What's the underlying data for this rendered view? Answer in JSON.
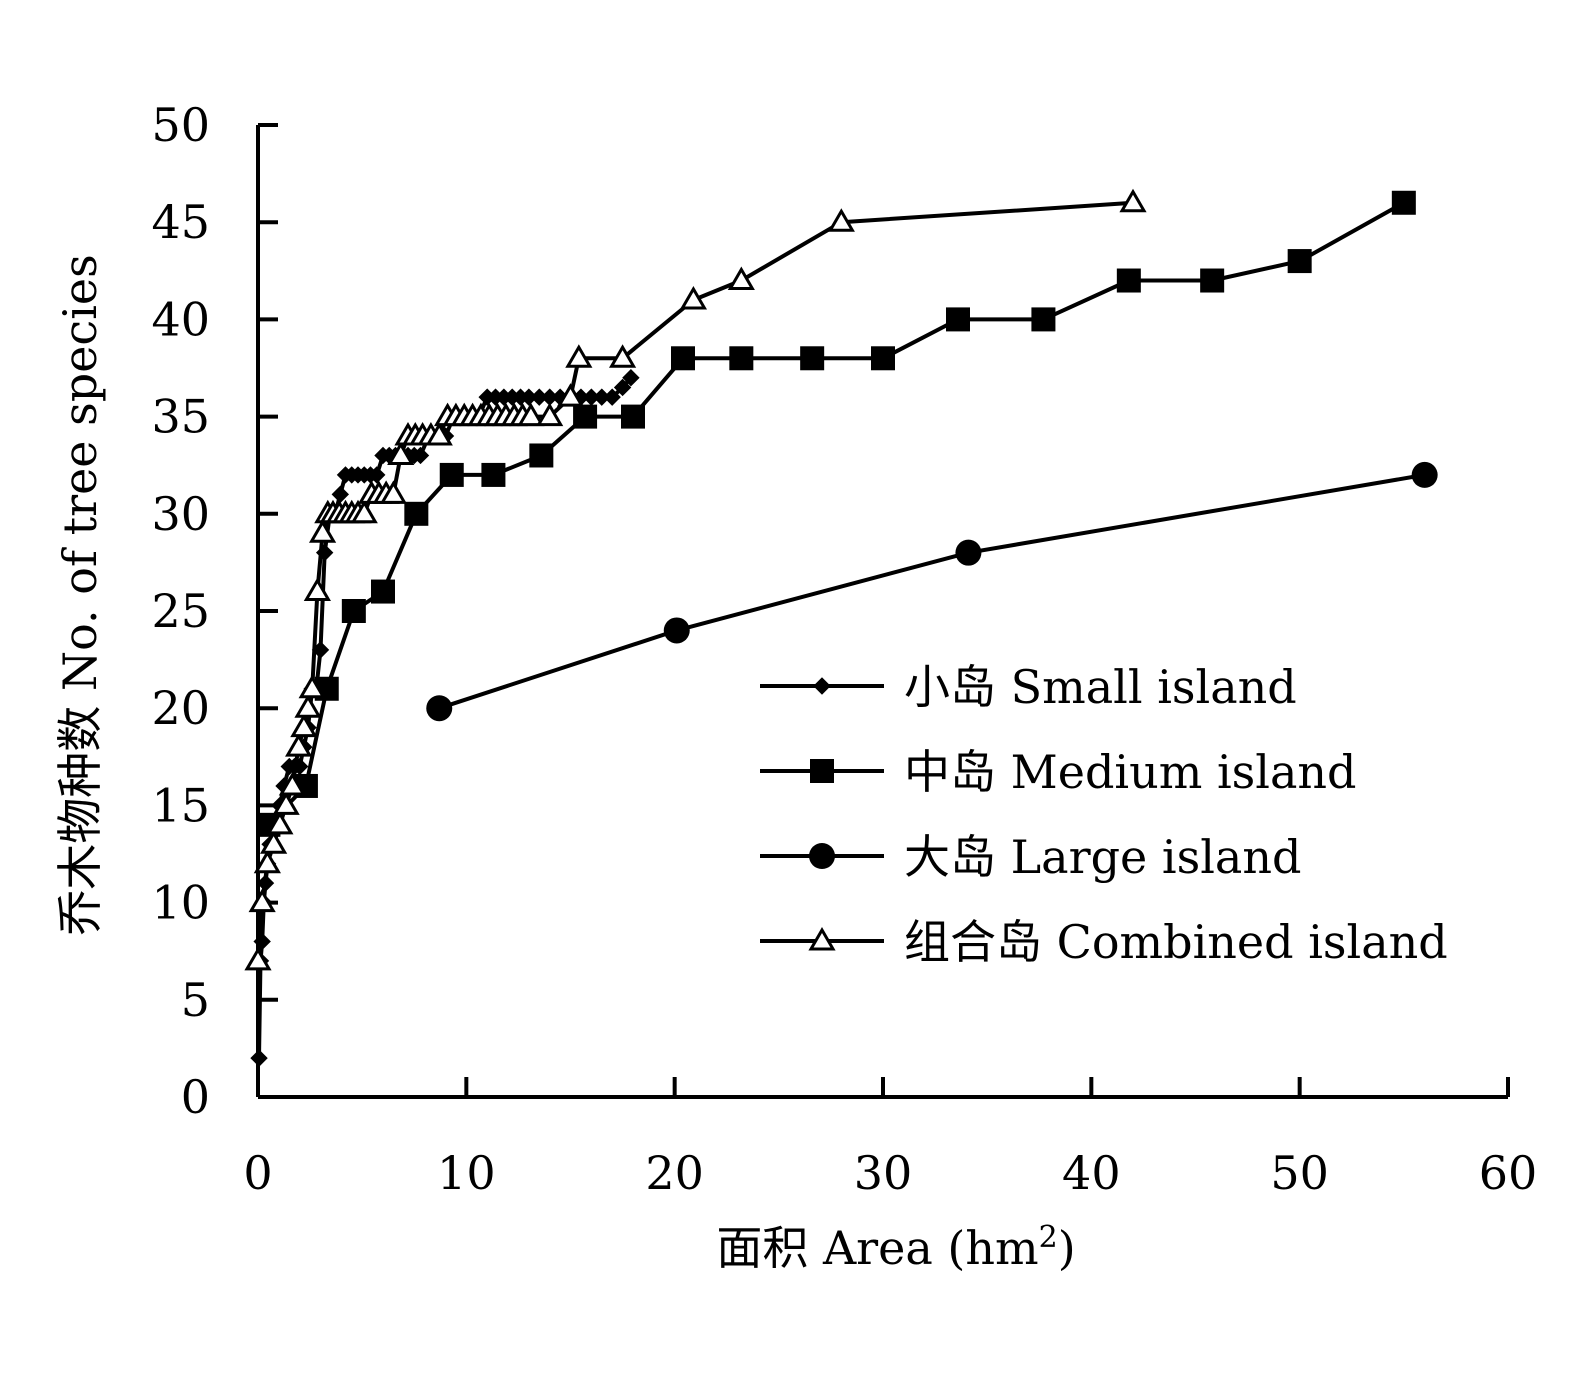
{
  "chart_data": {
    "type": "line",
    "xlabel": "面积 Area (hm²)",
    "xlabel_parts": {
      "main": "面积 Area  (hm",
      "sup": "2",
      "close": ")"
    },
    "ylabel": "乔木物种数 No. of tree species",
    "xlim": [
      0,
      60
    ],
    "ylim": [
      0,
      50
    ],
    "x_ticks": [
      0,
      10,
      20,
      30,
      40,
      50,
      60
    ],
    "y_ticks": [
      0,
      5,
      10,
      15,
      20,
      25,
      30,
      35,
      40,
      45,
      50
    ],
    "x_tick_labels": [
      "0",
      "10",
      "20",
      "30",
      "40",
      "50",
      "60"
    ],
    "y_tick_labels": [
      "0",
      "5",
      "10",
      "15",
      "20",
      "25",
      "30",
      "35",
      "40",
      "45",
      "50"
    ],
    "grid": false,
    "legend_position": "lower-right",
    "series": [
      {
        "name": "小岛 Small island",
        "marker": "diamond-filled",
        "x": [
          0.05,
          0.12,
          0.2,
          0.28,
          0.36,
          0.46,
          0.58,
          0.72,
          0.88,
          1.05,
          1.25,
          1.5,
          1.75,
          2.0,
          2.2,
          2.4,
          2.6,
          2.8,
          3.0,
          3.2,
          3.45,
          3.7,
          3.95,
          4.2,
          4.5,
          4.8,
          5.1,
          5.4,
          5.7,
          6.0,
          6.3,
          6.6,
          6.9,
          7.2,
          7.5,
          7.8,
          8.2,
          8.6,
          9.0,
          9.4,
          9.8,
          10.2,
          10.6,
          11.0,
          11.4,
          11.8,
          12.2,
          12.6,
          13.0,
          13.5,
          14.0,
          14.5,
          15.0,
          15.5,
          16.0,
          16.5,
          17.0,
          17.5,
          17.9
        ],
        "y": [
          2,
          7,
          8,
          10,
          11,
          12,
          13,
          14,
          14,
          15,
          16,
          17,
          17,
          17,
          18,
          19,
          21,
          21,
          23,
          28,
          30,
          30,
          31,
          32,
          32,
          32,
          32,
          32,
          32,
          33,
          33,
          33,
          33,
          33,
          33,
          33,
          34,
          34,
          34,
          35,
          35,
          35,
          35,
          36,
          36,
          36,
          36,
          36,
          36,
          36,
          36,
          36,
          36,
          36,
          36,
          36,
          36,
          36.5,
          37
        ]
      },
      {
        "name": "中岛 Medium island",
        "marker": "square-filled",
        "x": [
          0.5,
          2.3,
          3.3,
          4.6,
          6.0,
          7.6,
          9.3,
          11.3,
          13.6,
          15.7,
          18.0,
          20.4,
          23.2,
          26.6,
          30.0,
          33.6,
          37.7,
          41.8,
          45.8,
          50.0,
          55.0
        ],
        "y": [
          14,
          16,
          21,
          25,
          26,
          30,
          32,
          32,
          33,
          35,
          35,
          38,
          38,
          38,
          38,
          40,
          40,
          42,
          42,
          43,
          46
        ]
      },
      {
        "name": "大岛 Large island",
        "marker": "circle-filled",
        "x": [
          8.7,
          20.1,
          34.1,
          56.0
        ],
        "y": [
          20,
          24,
          28,
          32
        ]
      },
      {
        "name": "组合岛 Combined island",
        "marker": "triangle-open",
        "x": [
          0.0,
          0.2,
          0.45,
          0.75,
          1.05,
          1.35,
          1.65,
          1.95,
          2.2,
          2.4,
          2.6,
          2.85,
          3.1,
          3.35,
          3.6,
          3.9,
          4.2,
          4.5,
          4.8,
          5.1,
          5.45,
          5.8,
          6.15,
          6.5,
          6.85,
          7.2,
          7.55,
          7.9,
          8.3,
          8.7,
          9.1,
          9.5,
          9.9,
          10.3,
          10.7,
          11.1,
          11.5,
          11.9,
          12.3,
          12.7,
          13.1,
          14.0,
          15.0,
          15.4,
          17.5,
          20.9,
          23.2,
          28.0,
          42.0
        ],
        "y": [
          7,
          10,
          12,
          13,
          14,
          15,
          16,
          18,
          19,
          20,
          21,
          26,
          29,
          30,
          30,
          30,
          30,
          30,
          30,
          30,
          31,
          31,
          31,
          31,
          33,
          34,
          34,
          34,
          34,
          34,
          35,
          35,
          35,
          35,
          35,
          35,
          35,
          35,
          35,
          35,
          35,
          35,
          36,
          38,
          38,
          41,
          42,
          45,
          46
        ]
      }
    ]
  }
}
